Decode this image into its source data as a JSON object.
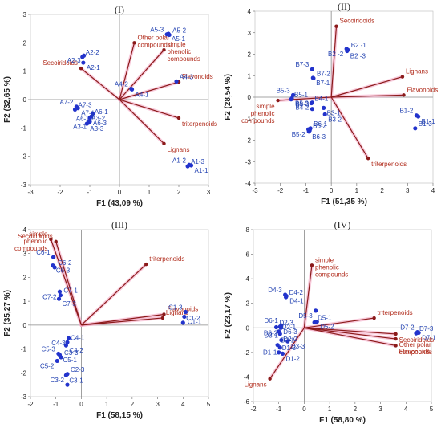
{
  "colors": {
    "point": "#2233cc",
    "point_label": "#1f3fb0",
    "vector": "#8b1a1a",
    "vector_label": "#b02a1a",
    "highlight": "#f4a7c4",
    "axis": "#888888"
  },
  "chart_data": [
    {
      "type": "scatter",
      "title": "(I)",
      "xlabel": "F1 (43,09 %)",
      "ylabel": "F2 (32,65 %)",
      "xlim": [
        -3,
        3
      ],
      "ylim": [
        -3,
        3
      ],
      "xticks": [
        "-3",
        "-2",
        "-1",
        "0",
        "1",
        "2",
        "3"
      ],
      "yticks": [
        "-3",
        "-2",
        "-1",
        "0",
        "1",
        "2",
        "3"
      ],
      "points": [
        {
          "label": "A5-3",
          "x": 1.6,
          "y": 2.3
        },
        {
          "label": "A5-1",
          "x": 1.65,
          "y": 2.32
        },
        {
          "label": "A5-2",
          "x": 1.68,
          "y": 2.28
        },
        {
          "label": "A2-3",
          "x": -1.2,
          "y": 1.55
        },
        {
          "label": "A2-2",
          "x": -1.25,
          "y": 1.5
        },
        {
          "label": "A2-1",
          "x": -1.22,
          "y": 1.3
        },
        {
          "label": "A4-2",
          "x": 0.4,
          "y": 0.38
        },
        {
          "label": "A4-1",
          "x": 0.42,
          "y": 0.36
        },
        {
          "label": "A4-3",
          "x": 1.92,
          "y": 0.64
        },
        {
          "label": "A6-2",
          "x": -0.9,
          "y": -0.5
        },
        {
          "label": "A6-1",
          "x": -0.95,
          "y": -0.6
        },
        {
          "label": "A6-3",
          "x": -1.0,
          "y": -0.65
        },
        {
          "label": "A7-2",
          "x": -1.45,
          "y": -0.25
        },
        {
          "label": "A7-1",
          "x": -1.4,
          "y": -0.3
        },
        {
          "label": "A7-3",
          "x": -1.5,
          "y": -0.35
        },
        {
          "label": "A3-1",
          "x": -1.0,
          "y": -0.78
        },
        {
          "label": "A3-2",
          "x": -1.05,
          "y": -0.82
        },
        {
          "label": "A3-3",
          "x": -1.1,
          "y": -0.85
        },
        {
          "label": "A1-2",
          "x": 2.35,
          "y": -2.3
        },
        {
          "label": "A1-1",
          "x": 2.42,
          "y": -2.32
        },
        {
          "label": "A1-3",
          "x": 2.3,
          "y": -2.35
        }
      ],
      "vectors": [
        {
          "label": "Other polar compounds",
          "x": 0.5,
          "y": 2.0
        },
        {
          "label": "simple phenolic compounds",
          "x": 1.5,
          "y": 1.75
        },
        {
          "label": "Secoiridoids",
          "x": -1.3,
          "y": 1.1
        },
        {
          "label": "Flavonoids",
          "x": 2.0,
          "y": 0.62
        },
        {
          "label": "triterpenoids",
          "x": 2.0,
          "y": -0.65
        },
        {
          "label": "Lignans",
          "x": 1.5,
          "y": -1.55
        }
      ]
    },
    {
      "type": "scatter",
      "title": "(II)",
      "xlabel": "F1 (51,35 %)",
      "ylabel": "F2 (28,54 %)",
      "xlim": [
        -3,
        4
      ],
      "ylim": [
        -4,
        4
      ],
      "xticks": [
        "-3",
        "-2",
        "-1",
        "0",
        "1",
        "2",
        "3",
        "4"
      ],
      "yticks": [
        "-4",
        "-3",
        "-2",
        "-1",
        "0",
        "1",
        "2",
        "3",
        "4"
      ],
      "points": [
        {
          "label": "B7-3",
          "x": -0.75,
          "y": 1.3
        },
        {
          "label": "B7-1",
          "x": -0.72,
          "y": 0.9
        },
        {
          "label": "B7-2",
          "x": -0.7,
          "y": 0.88
        },
        {
          "label": "B2 -2",
          "x": 0.6,
          "y": 2.25
        },
        {
          "label": "B2 -1",
          "x": 0.65,
          "y": 2.2
        },
        {
          "label": "B2 -3",
          "x": 0.62,
          "y": 2.15
        },
        {
          "label": "B5-3",
          "x": -1.5,
          "y": 0.1
        },
        {
          "label": "B5-2",
          "x": -1.55,
          "y": -0.05
        },
        {
          "label": "B5-1",
          "x": -1.58,
          "y": -0.1
        },
        {
          "label": "B4-2",
          "x": -0.75,
          "y": -0.25
        },
        {
          "label": "B4-1",
          "x": -0.78,
          "y": -0.28
        },
        {
          "label": "B3-1",
          "x": -0.3,
          "y": -0.5
        },
        {
          "label": "B3-3",
          "x": -0.75,
          "y": -0.55
        },
        {
          "label": "B3-2",
          "x": -0.25,
          "y": -0.8
        },
        {
          "label": "B6-1",
          "x": -0.82,
          "y": -1.45
        },
        {
          "label": "B5-2",
          "x": -0.9,
          "y": -1.5
        },
        {
          "label": "B6-2",
          "x": -0.85,
          "y": -1.55
        },
        {
          "label": "B6-3",
          "x": -0.88,
          "y": -1.6
        },
        {
          "label": "B1-2",
          "x": 3.35,
          "y": -0.85
        },
        {
          "label": "B1-1",
          "x": 3.42,
          "y": -0.9
        },
        {
          "label": "B1-3",
          "x": 3.3,
          "y": -1.45
        }
      ],
      "vectors": [
        {
          "label": "Secoiridoids",
          "x": 0.2,
          "y": 3.3
        },
        {
          "label": "Lignans",
          "x": 2.8,
          "y": 0.95
        },
        {
          "label": "Flavonoids",
          "x": 2.85,
          "y": 0.1
        },
        {
          "label": "simple phenolic compounds",
          "x": -2.1,
          "y": -0.15
        },
        {
          "label": "triterpenoids",
          "x": 1.45,
          "y": -2.85
        }
      ]
    },
    {
      "type": "scatter",
      "title": "(III)",
      "xlabel": "F1 (58,15 %)",
      "ylabel": "F2 (35,27 %)",
      "xlim": [
        -2,
        5
      ],
      "ylim": [
        -3,
        4
      ],
      "xticks": [
        "-2",
        "-1",
        "0",
        "1",
        "2",
        "3",
        "4",
        "5"
      ],
      "yticks": [
        "-3",
        "-2",
        "-1",
        "0",
        "1",
        "2",
        "3",
        "4"
      ],
      "points": [
        {
          "label": "C6-1",
          "x": -1.1,
          "y": 2.85
        },
        {
          "label": "C6-3",
          "x": -1.12,
          "y": 2.5
        },
        {
          "label": "C6-2",
          "x": -1.05,
          "y": 2.42
        },
        {
          "label": "C7-2",
          "x": -0.85,
          "y": 1.4
        },
        {
          "label": "C7-1",
          "x": -0.82,
          "y": 1.25
        },
        {
          "label": "C7-3",
          "x": -0.88,
          "y": 1.1
        },
        {
          "label": "C1-3",
          "x": 4.1,
          "y": 0.55
        },
        {
          "label": "C1-1",
          "x": 4.05,
          "y": 0.35
        },
        {
          "label": "C1-2",
          "x": 4.0,
          "y": 0.1
        },
        {
          "label": "C4-3",
          "x": -0.5,
          "y": -0.55
        },
        {
          "label": "C4-1",
          "x": -0.55,
          "y": -0.72
        },
        {
          "label": "C4-2",
          "x": -0.6,
          "y": -0.85
        },
        {
          "label": "C5-3",
          "x": -0.9,
          "y": -1.2
        },
        {
          "label": "C5-1",
          "x": -0.85,
          "y": -1.25
        },
        {
          "label": "C3-3",
          "x": -0.8,
          "y": -1.35
        },
        {
          "label": "C5-2",
          "x": -0.95,
          "y": -1.5
        },
        {
          "label": "C2-3",
          "x": -0.55,
          "y": -2.05
        },
        {
          "label": "C3-1",
          "x": -0.6,
          "y": -2.1
        },
        {
          "label": "C3-2",
          "x": -0.55,
          "y": -2.5
        }
      ],
      "vectors": [
        {
          "label": "simple phenolic compounds",
          "x": -1.2,
          "y": 3.6
        },
        {
          "label": "Secoiridoids",
          "x": -1.0,
          "y": 3.5
        },
        {
          "label": "triterpenoids",
          "x": 2.55,
          "y": 2.55
        },
        {
          "label": "Flavonoids",
          "x": 3.25,
          "y": 0.45
        },
        {
          "label": "Lignans",
          "x": 3.2,
          "y": 0.3
        }
      ]
    },
    {
      "type": "scatter",
      "title": "(IV)",
      "xlabel": "F1 (58,80 %)",
      "ylabel": "F2 (23,17 %)",
      "xlim": [
        -2,
        5
      ],
      "ylim": [
        -6,
        8
      ],
      "xticks": [
        "-2",
        "-1",
        "0",
        "1",
        "2",
        "3",
        "4",
        "5"
      ],
      "yticks": [
        "-6",
        "-4",
        "-2",
        "0",
        "2",
        "4",
        "6",
        "8"
      ],
      "points": [
        {
          "label": "D4-3",
          "x": -0.75,
          "y": 2.7
        },
        {
          "label": "D4-1",
          "x": -0.7,
          "y": 2.6
        },
        {
          "label": "D4-2",
          "x": -0.72,
          "y": 2.5
        },
        {
          "label": "D5-3",
          "x": 0.45,
          "y": 1.4
        },
        {
          "label": "D5-1",
          "x": 0.4,
          "y": 0.45
        },
        {
          "label": "D5-2",
          "x": 0.5,
          "y": 0.5
        },
        {
          "label": "D6-1",
          "x": -0.9,
          "y": 0.2
        },
        {
          "label": "D6-3",
          "x": -0.95,
          "y": 0.1
        },
        {
          "label": "D2-3",
          "x": -1.1,
          "y": 0.05
        },
        {
          "label": "D6-2",
          "x": -0.92,
          "y": 0.0
        },
        {
          "label": "D2-1",
          "x": -1.0,
          "y": -0.3
        },
        {
          "label": "D2-2",
          "x": -0.95,
          "y": -0.5
        },
        {
          "label": "D3-1",
          "x": -0.9,
          "y": -1.0
        },
        {
          "label": "D3-3",
          "x": -0.65,
          "y": -1.1
        },
        {
          "label": "D3-2",
          "x": -1.05,
          "y": -1.4
        },
        {
          "label": "D1-1",
          "x": -0.95,
          "y": -1.6
        },
        {
          "label": "D1-3",
          "x": -1.0,
          "y": -2.0
        },
        {
          "label": "D1-2",
          "x": -0.85,
          "y": -2.1
        },
        {
          "label": "D7-2",
          "x": 4.45,
          "y": -0.35
        },
        {
          "label": "D7-1",
          "x": 4.5,
          "y": -0.4
        },
        {
          "label": "D7-3",
          "x": 4.4,
          "y": -0.45
        }
      ],
      "vectors": [
        {
          "label": "simple phenolic compounds",
          "x": 0.3,
          "y": 5.1
        },
        {
          "label": "triterpenoids",
          "x": 2.75,
          "y": 0.8
        },
        {
          "label": "Secoiridoids",
          "x": 3.6,
          "y": -0.5
        },
        {
          "label": "Other polar compounds",
          "x": 3.6,
          "y": -0.9
        },
        {
          "label": "Flavonoids",
          "x": 3.6,
          "y": -1.45
        },
        {
          "label": "Lignans",
          "x": -1.35,
          "y": -4.15
        }
      ]
    }
  ]
}
